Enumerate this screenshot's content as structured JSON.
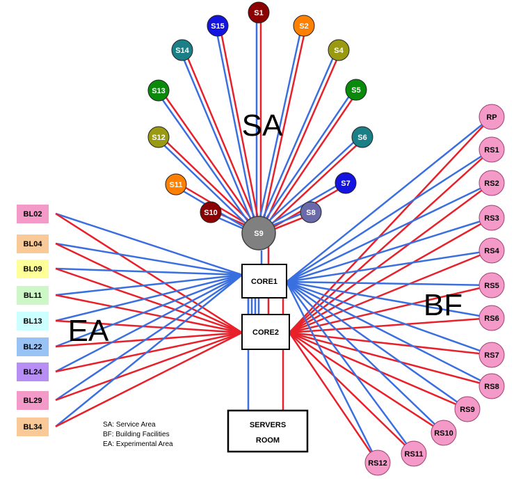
{
  "areas": {
    "sa_label": "SA",
    "bf_label": "BF",
    "ea_label": "EA"
  },
  "hub": {
    "label": "S9",
    "color": "#808080"
  },
  "core1": {
    "label": "CORE1"
  },
  "core2": {
    "label": "CORE2"
  },
  "servers": {
    "line1": "SERVERS",
    "line2": "ROOM"
  },
  "legend": {
    "sa": "SA: Service Area",
    "bf": "BF: Building Facilities",
    "ea": "EA: Experimental Area"
  },
  "link_colors": {
    "primary": "#3a6fe0",
    "secondary": "#e8202a"
  },
  "sa_nodes": [
    {
      "label": "S1",
      "color": "#8b0000"
    },
    {
      "label": "S2",
      "color": "#ff7f00"
    },
    {
      "label": "S4",
      "color": "#9a9a12"
    },
    {
      "label": "S5",
      "color": "#0a8a0a"
    },
    {
      "label": "S6",
      "color": "#1a7f86"
    },
    {
      "label": "S7",
      "color": "#1414e0"
    },
    {
      "label": "S8",
      "color": "#6a6aaa"
    },
    {
      "label": "S10",
      "color": "#8b0000"
    },
    {
      "label": "S11",
      "color": "#ff7f00"
    },
    {
      "label": "S12",
      "color": "#9a9a12"
    },
    {
      "label": "S13",
      "color": "#0a8a0a"
    },
    {
      "label": "S14",
      "color": "#1a7f86"
    },
    {
      "label": "S15",
      "color": "#1414e0"
    }
  ],
  "ea_nodes": [
    {
      "label": "BL02",
      "color": "#f39ac8"
    },
    {
      "label": "BL04",
      "color": "#f9c998"
    },
    {
      "label": "BL09",
      "color": "#ffff99"
    },
    {
      "label": "BL11",
      "color": "#cdf7c6"
    },
    {
      "label": "BL13",
      "color": "#ccffff"
    },
    {
      "label": "BL22",
      "color": "#99c3f4"
    },
    {
      "label": "BL24",
      "color": "#b68ef4"
    },
    {
      "label": "BL29",
      "color": "#f39ac8"
    },
    {
      "label": "BL34",
      "color": "#f9c998"
    }
  ],
  "bf_nodes": [
    {
      "label": "RP",
      "color": "#f39ac8"
    },
    {
      "label": "RS1",
      "color": "#f39ac8"
    },
    {
      "label": "RS2",
      "color": "#f39ac8"
    },
    {
      "label": "RS3",
      "color": "#f39ac8"
    },
    {
      "label": "RS4",
      "color": "#f39ac8"
    },
    {
      "label": "RS5",
      "color": "#f39ac8"
    },
    {
      "label": "RS6",
      "color": "#f39ac8"
    },
    {
      "label": "RS7",
      "color": "#f39ac8"
    },
    {
      "label": "RS8",
      "color": "#f39ac8"
    },
    {
      "label": "RS9",
      "color": "#f39ac8"
    },
    {
      "label": "RS10",
      "color": "#f39ac8"
    },
    {
      "label": "RS11",
      "color": "#f39ac8"
    },
    {
      "label": "RS12",
      "color": "#f39ac8"
    }
  ]
}
